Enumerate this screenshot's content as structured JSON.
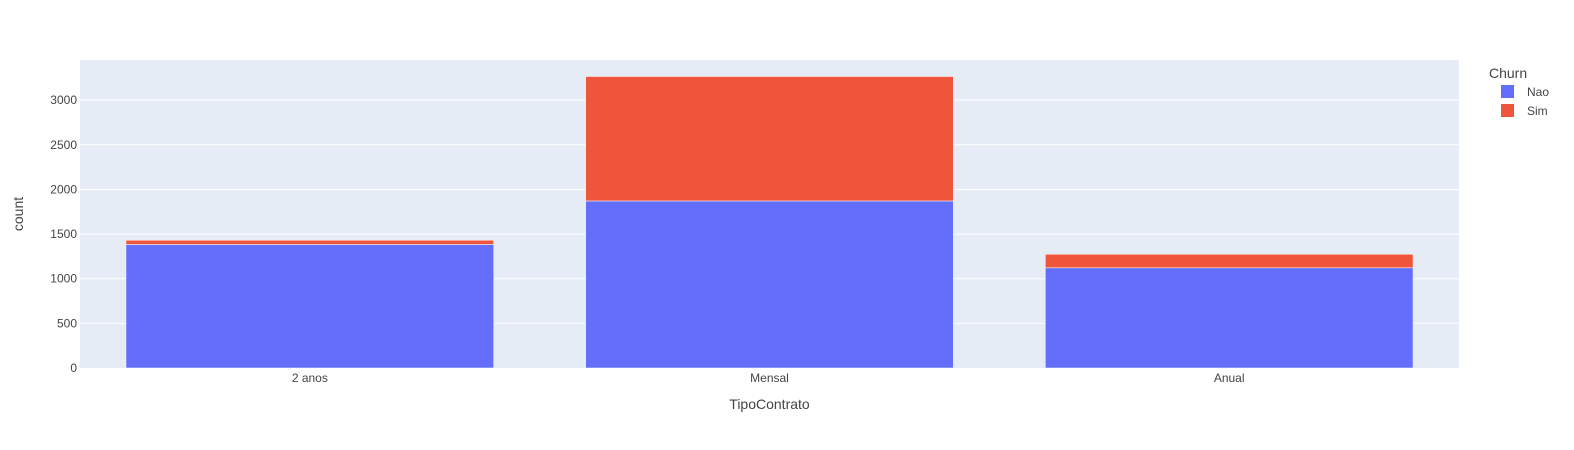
{
  "chart_data": {
    "type": "bar",
    "barmode": "stack",
    "title": "",
    "xlabel": "TipoContrato",
    "ylabel": "count",
    "categories": [
      "2 anos",
      "Mensal",
      "Anual"
    ],
    "series": [
      {
        "name": "Nao",
        "color": "#636efa",
        "values": [
          1384,
          1871,
          1122
        ]
      },
      {
        "name": "Sim",
        "color": "#ef553b",
        "values": [
          47,
          1394,
          152
        ]
      }
    ],
    "ylim": [
      0,
      3450
    ],
    "yticks": [
      0,
      500,
      1000,
      1500,
      2000,
      2500,
      3000
    ],
    "legend": {
      "title": "Churn",
      "position": "top-right"
    },
    "grid": true,
    "plot_bg": "#e5ecf6"
  }
}
